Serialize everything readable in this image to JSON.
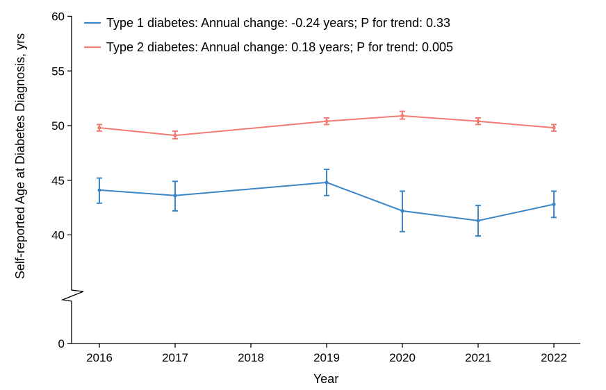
{
  "chart_data": {
    "type": "line",
    "xlabel": "Year",
    "ylabel": "Self-reported Age at Diabetes Diagnosis, yrs",
    "x": [
      2016,
      2017,
      2018,
      2019,
      2020,
      2021,
      2022
    ],
    "x_tick_labels": [
      "2016",
      "2017",
      "2018",
      "2019",
      "2020",
      "2021",
      "2022"
    ],
    "y_ticks": [
      0,
      40,
      45,
      50,
      55,
      60
    ],
    "y_tick_labels": [
      "0",
      "40",
      "45",
      "50",
      "55",
      "60"
    ],
    "ylim": [
      0,
      60
    ],
    "y_axis_break": [
      0,
      35
    ],
    "grid": false,
    "legend_position": "top-left",
    "series": [
      {
        "name": "Type 1 diabetes: Annual change: -0.24 years; P for trend: 0.33",
        "color": "#3a87c8",
        "points": [
          {
            "x": 2016,
            "y": 44.1,
            "lo": 42.9,
            "hi": 45.2
          },
          {
            "x": 2017,
            "y": 43.6,
            "lo": 42.2,
            "hi": 44.9
          },
          {
            "x": 2019,
            "y": 44.8,
            "lo": 43.6,
            "hi": 46.0
          },
          {
            "x": 2020,
            "y": 42.2,
            "lo": 40.3,
            "hi": 44.0
          },
          {
            "x": 2021,
            "y": 41.3,
            "lo": 39.9,
            "hi": 42.7
          },
          {
            "x": 2022,
            "y": 42.8,
            "lo": 41.6,
            "hi": 44.0
          }
        ]
      },
      {
        "name": "Type 2 diabetes: Annual change: 0.18 years; P for trend: 0.005",
        "color": "#f07c72",
        "points": [
          {
            "x": 2016,
            "y": 49.8,
            "lo": 49.5,
            "hi": 50.1
          },
          {
            "x": 2017,
            "y": 49.1,
            "lo": 48.8,
            "hi": 49.5
          },
          {
            "x": 2019,
            "y": 50.4,
            "lo": 50.1,
            "hi": 50.7
          },
          {
            "x": 2020,
            "y": 50.9,
            "lo": 50.6,
            "hi": 51.3
          },
          {
            "x": 2021,
            "y": 50.4,
            "lo": 50.1,
            "hi": 50.7
          },
          {
            "x": 2022,
            "y": 49.8,
            "lo": 49.5,
            "hi": 50.1
          }
        ]
      }
    ]
  }
}
